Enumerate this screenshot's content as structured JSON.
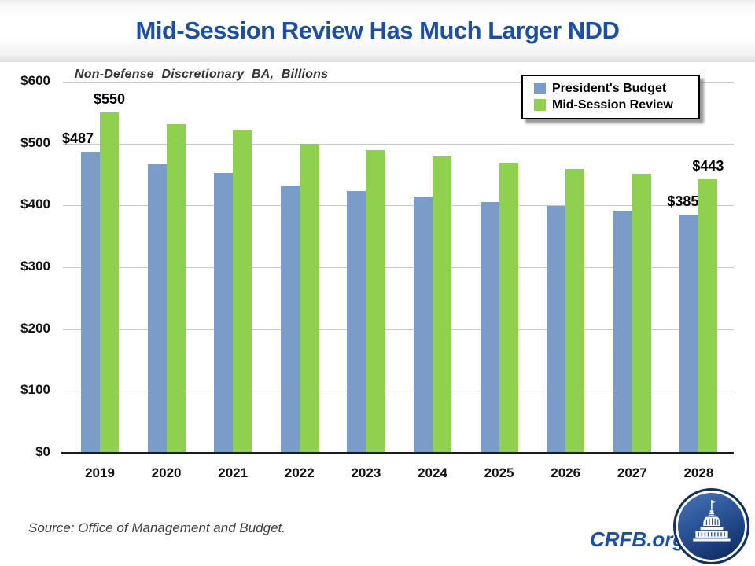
{
  "title": "Mid-Session Review Has Much Larger NDD",
  "subtitle": "Non-Defense Discretionary BA, Billions",
  "source": "Source: Office of Management and Budget.",
  "brand": {
    "site": "CRFB.org"
  },
  "colors": {
    "title_blue": "#1d4fa1",
    "bar_blue": "#7b9cc9",
    "bar_green": "#8fd04f",
    "gridline": "#c8c8cc",
    "axis": "#1c1c1c"
  },
  "legend": {
    "items": [
      {
        "label": "President's Budget",
        "color": "#7b9cc9"
      },
      {
        "label": "Mid-Session Review",
        "color": "#8fd04f"
      }
    ]
  },
  "chart_data": {
    "type": "bar",
    "title": "Mid-Session Review Has Much Larger NDD",
    "subtitle": "Non-Defense Discretionary BA, Billions",
    "categories": [
      "2019",
      "2020",
      "2021",
      "2022",
      "2023",
      "2024",
      "2025",
      "2026",
      "2027",
      "2028"
    ],
    "series": [
      {
        "name": "President's Budget",
        "color": "#7b9cc9",
        "values": [
          487,
          466,
          453,
          432,
          423,
          414,
          406,
          399,
          392,
          385
        ]
      },
      {
        "name": "Mid-Session Review",
        "color": "#8fd04f",
        "values": [
          550,
          532,
          521,
          500,
          490,
          479,
          469,
          459,
          451,
          443
        ]
      }
    ],
    "xlabel": "",
    "ylabel": "Non-Defense Discretionary BA, Billions",
    "ylim": [
      0,
      600
    ],
    "ytick_step": 100,
    "ytick_prefix": "$",
    "grid": true,
    "legend_position": "top-right",
    "annotations": [
      {
        "text": "$487",
        "year": "2019",
        "series": 0,
        "dx": -16
      },
      {
        "text": "$550",
        "year": "2019",
        "series": 1,
        "dx": 0
      },
      {
        "text": "$385",
        "year": "2028",
        "series": 0,
        "dx": -8
      },
      {
        "text": "$443",
        "year": "2028",
        "series": 1,
        "dx": 0
      }
    ]
  }
}
